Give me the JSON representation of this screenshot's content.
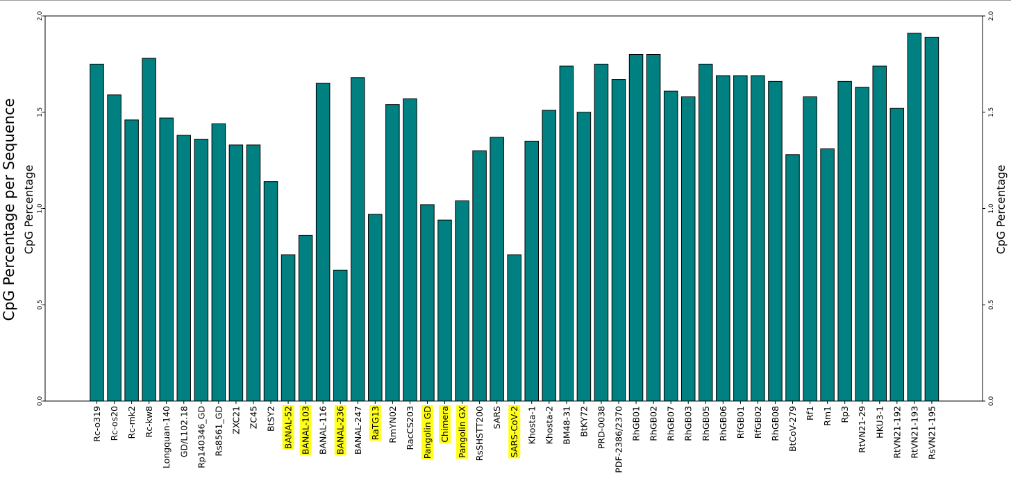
{
  "chart_data": {
    "type": "bar",
    "title": "",
    "y_axis_outer_label": "CpG Percentage per Sequence",
    "ylabel_left": "CpG Percentage",
    "ylabel_right": "CpG Percentage",
    "ylim": [
      0,
      2.0
    ],
    "yticks": [
      "0.0",
      "0.5",
      "1.0",
      "1.5",
      "2.0"
    ],
    "bar_color": "#008080",
    "highlight_color": "#ffff1a",
    "categories": [
      "Rc-o319",
      "Rc-os20",
      "Rc-mk2",
      "Rc-kw8",
      "Longquan-140",
      "GD/L102.18",
      "Rp140346_GD",
      "Rs8561_GD",
      "ZXC21",
      "ZC45",
      "BtSY2",
      "BANAL-52",
      "BANAL-103",
      "BANAL-116",
      "BANAL-236",
      "BANAL-247",
      "RaTG13",
      "RmYN02",
      "RacCS203",
      "Pangolin GD",
      "Chimera",
      "Pangolin GX",
      "RsSHSTT200",
      "SARS",
      "SARS-CoV-2",
      "Khosta-1",
      "Khosta-2",
      "BM48-31",
      "BtKY72",
      "PRD-0038",
      "PDF-2386/2370",
      "RhGB01",
      "RhGB02",
      "RhGB07",
      "RhGB03",
      "RhGB05",
      "RhGB06",
      "RfGB01",
      "RfGB02",
      "RhGB08",
      "BtCoV-279",
      "Rf1",
      "Rm1",
      "Rp3",
      "RtVN21-29",
      "HKU3-1",
      "RtVN21-192",
      "RtVN21-193",
      "RsVN21-195"
    ],
    "values": [
      1.75,
      1.59,
      1.46,
      1.78,
      1.47,
      1.38,
      1.36,
      1.44,
      1.33,
      1.33,
      1.14,
      0.76,
      0.86,
      1.65,
      0.68,
      1.68,
      0.97,
      1.54,
      1.57,
      1.02,
      0.94,
      1.04,
      1.3,
      1.37,
      0.76,
      1.35,
      1.51,
      1.74,
      1.5,
      1.75,
      1.67,
      1.8,
      1.8,
      1.61,
      1.58,
      1.75,
      1.69,
      1.69,
      1.69,
      1.66,
      1.28,
      1.58,
      1.31,
      1.66,
      1.63,
      1.74,
      1.52,
      1.91,
      1.89
    ],
    "highlighted": [
      "BANAL-52",
      "BANAL-103",
      "BANAL-236",
      "RaTG13",
      "Pangolin GD",
      "Chimera",
      "Pangolin GX",
      "SARS-CoV-2"
    ]
  }
}
